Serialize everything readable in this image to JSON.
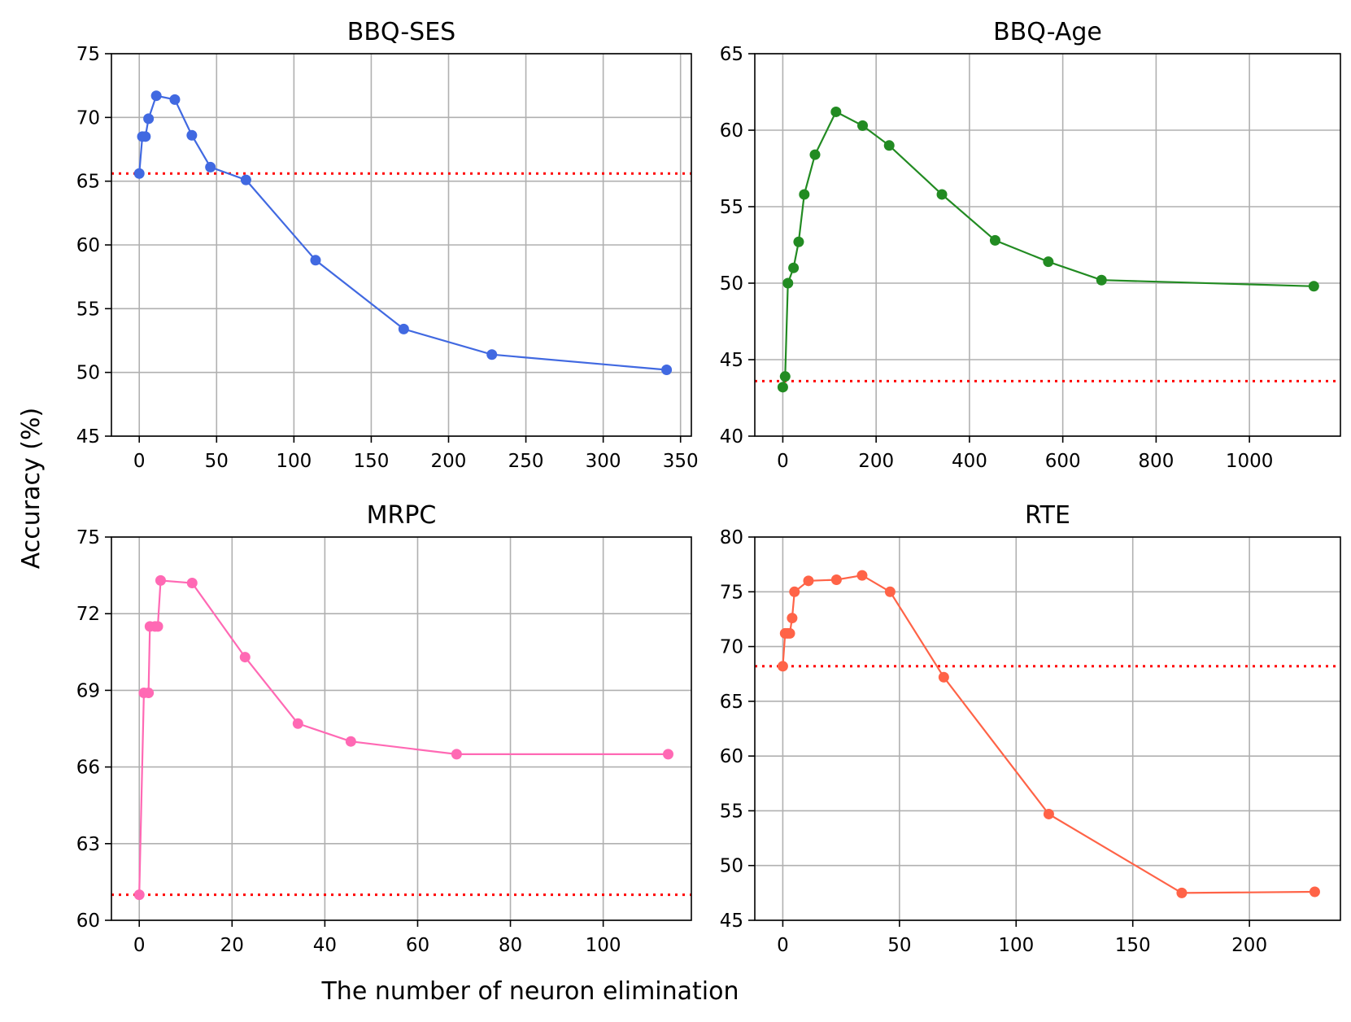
{
  "figure": {
    "ylabel": "Accuracy (%)",
    "xlabel": "The number of neuron elimination"
  },
  "chart_data": [
    {
      "type": "line",
      "title": "BBQ-SES",
      "color": "#4169e1",
      "xlim": [
        -18,
        357
      ],
      "ylim": [
        45,
        75
      ],
      "xticks": [
        0,
        50,
        100,
        150,
        200,
        250,
        300,
        350
      ],
      "yticks": [
        45,
        50,
        55,
        60,
        65,
        70,
        75
      ],
      "baseline": 65.6,
      "baseline_color": "#ff0000",
      "x": [
        0,
        2,
        4,
        6,
        11,
        23,
        34,
        46,
        69,
        114,
        171,
        228,
        341
      ],
      "y": [
        65.6,
        68.5,
        68.5,
        69.9,
        71.7,
        71.4,
        68.6,
        66.1,
        65.1,
        58.8,
        53.4,
        51.4,
        50.2
      ]
    },
    {
      "type": "line",
      "title": "BBQ-Age",
      "color": "#228b22",
      "xlim": [
        -60,
        1195
      ],
      "ylim": [
        40,
        65
      ],
      "xticks": [
        0,
        200,
        400,
        600,
        800,
        1000
      ],
      "yticks": [
        40,
        45,
        50,
        55,
        60,
        65
      ],
      "baseline": 43.6,
      "baseline_color": "#ff0000",
      "x": [
        0,
        5,
        11,
        23,
        34,
        46,
        69,
        114,
        171,
        228,
        341,
        455,
        569,
        683,
        1138
      ],
      "y": [
        43.2,
        43.9,
        50.0,
        51.0,
        52.7,
        55.8,
        58.4,
        61.2,
        60.3,
        59.0,
        55.8,
        52.8,
        51.4,
        50.2,
        49.8
      ]
    },
    {
      "type": "line",
      "title": "MRPC",
      "color": "#ff69b4",
      "xlim": [
        -6,
        119
      ],
      "ylim": [
        60,
        75
      ],
      "xticks": [
        0,
        20,
        40,
        60,
        80,
        100
      ],
      "yticks": [
        60,
        63,
        66,
        69,
        72,
        75
      ],
      "baseline": 61.0,
      "baseline_color": "#ff0000",
      "x": [
        0,
        1,
        2,
        2.3,
        3.4,
        4,
        4.6,
        11.4,
        22.8,
        34.2,
        45.6,
        68.4,
        114
      ],
      "y": [
        61.0,
        68.9,
        68.9,
        71.5,
        71.5,
        71.5,
        73.3,
        73.2,
        70.3,
        67.7,
        67.0,
        66.5,
        66.5
      ]
    },
    {
      "type": "line",
      "title": "RTE",
      "color": "#ff6347",
      "xlim": [
        -12,
        239
      ],
      "ylim": [
        45,
        80
      ],
      "xticks": [
        0,
        50,
        100,
        150,
        200
      ],
      "yticks": [
        45,
        50,
        55,
        60,
        65,
        70,
        75,
        80
      ],
      "baseline": 68.2,
      "baseline_color": "#ff0000",
      "x": [
        0,
        1,
        2,
        3,
        4,
        5,
        11,
        23,
        34,
        46,
        69,
        114,
        171,
        228
      ],
      "y": [
        68.2,
        71.2,
        71.2,
        71.2,
        72.6,
        75.0,
        76.0,
        76.1,
        76.5,
        75.0,
        67.2,
        54.7,
        47.5,
        47.6
      ]
    }
  ]
}
